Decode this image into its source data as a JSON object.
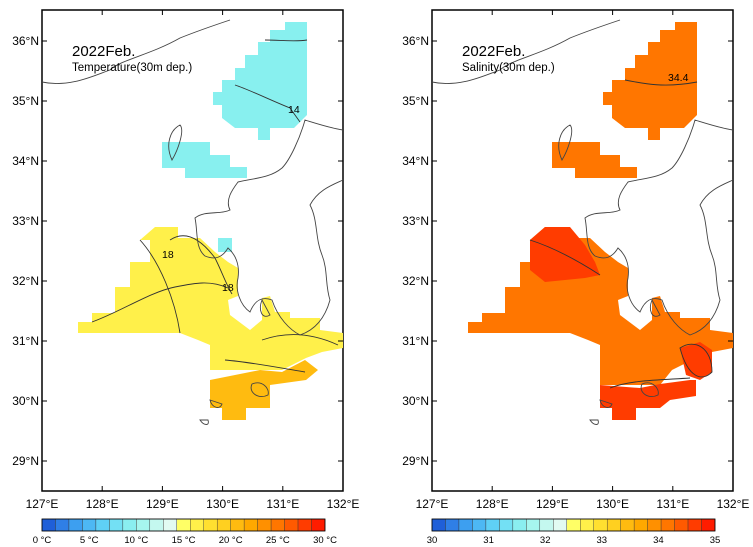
{
  "maps": [
    {
      "title": "2022Feb.",
      "subtitle": "Temperature(30m dep.)",
      "contour_labels": [
        "14",
        "18",
        "18"
      ],
      "colorbar_labels": [
        "0 °C",
        "5 °C",
        "10 °C",
        "15 °C",
        "20 °C",
        "25 °C",
        "30 °C"
      ],
      "colorbar_colors": [
        "#1f5fd8",
        "#2f7fe6",
        "#3d9ff0",
        "#4db8f4",
        "#5fd0f6",
        "#73e0f4",
        "#8aeef0",
        "#a6f5ee",
        "#c4f8ef",
        "#e2fbf2",
        "#ffff66",
        "#fff04a",
        "#ffe030",
        "#ffd020",
        "#ffbb10",
        "#ffa800",
        "#ff9000",
        "#ff7600",
        "#ff5a00",
        "#ff3c00",
        "#ff1c00"
      ]
    },
    {
      "title": "2022Feb.",
      "subtitle": "Salinity(30m dep.)",
      "contour_labels": [
        "34.4"
      ],
      "colorbar_labels": [
        "30",
        "31",
        "32",
        "33",
        "34",
        "35"
      ],
      "colorbar_colors": [
        "#1f5fd8",
        "#2f7fe6",
        "#3d9ff0",
        "#4db8f4",
        "#5fd0f6",
        "#73e0f4",
        "#8aeef0",
        "#a6f5ee",
        "#c4f8ef",
        "#e2fbf2",
        "#ffff66",
        "#fff04a",
        "#ffe030",
        "#ffd020",
        "#ffbb10",
        "#ffa800",
        "#ff9000",
        "#ff7600",
        "#ff5a00",
        "#ff3c00",
        "#ff1c00"
      ]
    }
  ],
  "lat_labels": [
    "36°N",
    "35°N",
    "34°N",
    "33°N",
    "32°N",
    "31°N",
    "30°N",
    "29°N"
  ],
  "lon_labels": [
    "127°E",
    "128°E",
    "129°E",
    "130°E",
    "131°E",
    "132°E"
  ]
}
